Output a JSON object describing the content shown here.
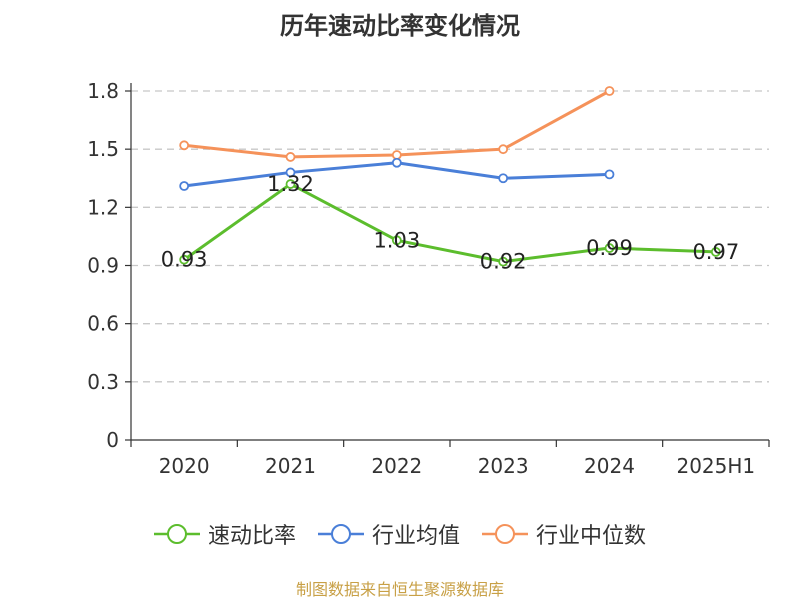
{
  "title": "历年速动比率变化情况",
  "source": "制图数据来自恒生聚源数据库",
  "chart_data": {
    "type": "line",
    "categories": [
      "2020",
      "2021",
      "2022",
      "2023",
      "2024",
      "2025H1"
    ],
    "ylim": [
      0,
      1.8
    ],
    "yticks": [
      "0",
      "0.3",
      "0.6",
      "0.9",
      "1.2",
      "1.5",
      "1.8"
    ],
    "grid": "horizontal dashed",
    "legend_position": "bottom",
    "series": [
      {
        "name": "速动比率",
        "color": "#5cbd2d",
        "labels": true,
        "values": [
          0.93,
          1.32,
          1.03,
          0.92,
          0.99,
          0.97
        ]
      },
      {
        "name": "行业均值",
        "color": "#4a7fd8",
        "labels": false,
        "values": [
          1.31,
          1.38,
          1.43,
          1.35,
          1.37,
          null
        ]
      },
      {
        "name": "行业中位数",
        "color": "#f5925a",
        "labels": false,
        "values": [
          1.52,
          1.46,
          1.47,
          1.5,
          1.8,
          null
        ]
      }
    ]
  }
}
